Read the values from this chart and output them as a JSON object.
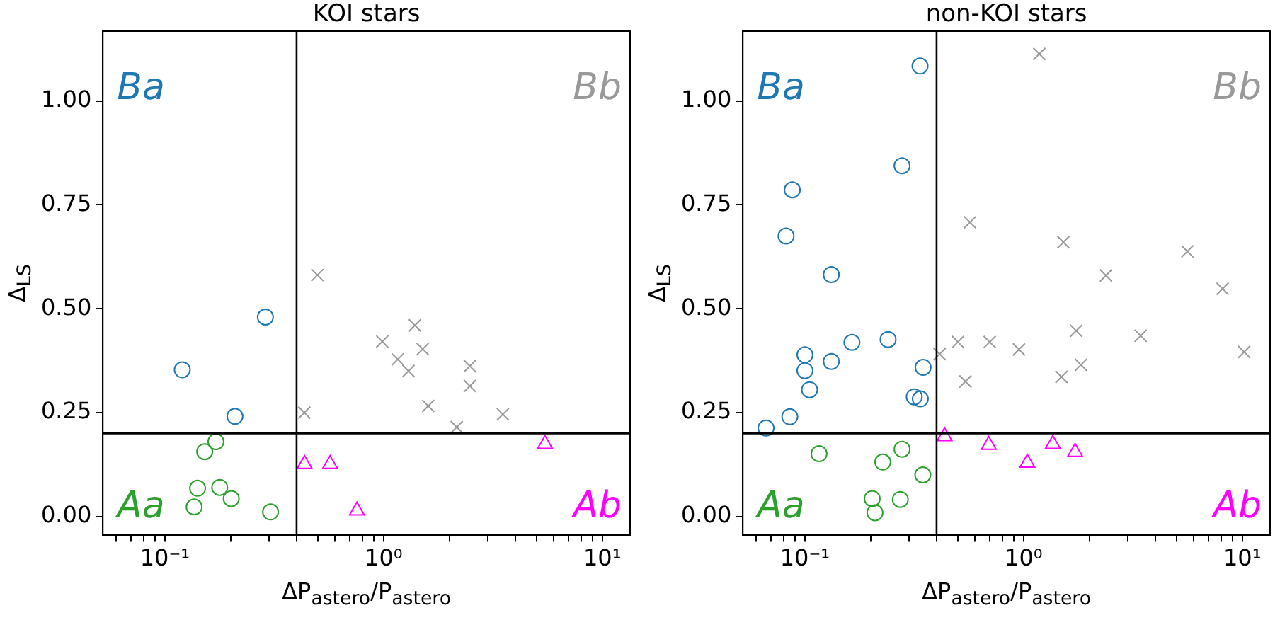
{
  "chart_data": [
    {
      "type": "scatter",
      "title": "KOI stars",
      "xlabel": "ΔP$_{astero}$/P$_{astero}$",
      "ylabel": "Δ$_{LS}$",
      "log": "x",
      "grid": false,
      "xlim": [
        0.052,
        13.4
      ],
      "ylim": [
        -0.044,
        1.168
      ],
      "xticks": [
        {
          "value": 0.06,
          "label": null
        },
        {
          "value": 0.07,
          "label": null
        },
        {
          "value": 0.08,
          "label": null
        },
        {
          "value": 0.09,
          "label": null
        },
        {
          "value": 0.1,
          "label": "10⁻¹"
        },
        {
          "value": 0.2,
          "label": null
        },
        {
          "value": 0.3,
          "label": null
        },
        {
          "value": 0.4,
          "label": null
        },
        {
          "value": 0.5,
          "label": null
        },
        {
          "value": 0.6,
          "label": null
        },
        {
          "value": 0.7,
          "label": null
        },
        {
          "value": 0.8,
          "label": null
        },
        {
          "value": 0.9,
          "label": null
        },
        {
          "value": 1,
          "label": "10⁰"
        },
        {
          "value": 2,
          "label": null
        },
        {
          "value": 3,
          "label": null
        },
        {
          "value": 4,
          "label": null
        },
        {
          "value": 5,
          "label": null
        },
        {
          "value": 6,
          "label": null
        },
        {
          "value": 7,
          "label": null
        },
        {
          "value": 8,
          "label": null
        },
        {
          "value": 9,
          "label": null
        },
        {
          "value": 10,
          "label": "10¹"
        }
      ],
      "yticks": [
        {
          "value": 0,
          "label": "0.00"
        },
        {
          "value": 0.25,
          "label": "0.25"
        },
        {
          "value": 0.5,
          "label": "0.50"
        },
        {
          "value": 0.75,
          "label": "0.75"
        },
        {
          "value": 1,
          "label": "1.00"
        }
      ],
      "ref_lines": [
        {
          "axis": "x",
          "value": 0.4,
          "color": "#000000"
        },
        {
          "axis": "y",
          "value": 0.2,
          "color": "#000000"
        }
      ],
      "annotations": [
        "Aa",
        "Ab",
        "Ba",
        "Bb"
      ],
      "series": [
        {
          "color": "#2ca02c",
          "marker": "circle",
          "x": [
            0.152,
            0.171,
            0.141,
            0.178,
            0.136,
            0.201,
            0.304
          ],
          "values": [
            0.156,
            0.18,
            0.068,
            0.07,
            0.023,
            0.043,
            0.011
          ]
        },
        {
          "color": "#ff00ff",
          "marker": "triangle",
          "x": [
            0.435,
            0.569,
            0.755,
            5.47
          ],
          "values": [
            0.126,
            0.126,
            0.014,
            0.174
          ]
        },
        {
          "color": "#1f77b4",
          "marker": "circle",
          "x": [
            0.12,
            0.288,
            0.209
          ],
          "values": [
            0.353,
            0.48,
            0.241
          ]
        },
        {
          "color": "#999999",
          "marker": "cross",
          "x": [
            0.498,
            0.434,
            0.986,
            1.16,
            1.3,
            1.39,
            1.51,
            1.6,
            2.16,
            2.48,
            2.48,
            3.51
          ],
          "values": [
            0.581,
            0.25,
            0.421,
            0.378,
            0.35,
            0.46,
            0.403,
            0.266,
            0.215,
            0.362,
            0.314,
            0.246
          ]
        }
      ]
    },
    {
      "type": "scatter",
      "title": "non-KOI stars",
      "xlabel": "ΔP$_{astero}$/P$_{astero}$",
      "ylabel": "Δ$_{LS}$",
      "log": "x",
      "grid": false,
      "xlim": [
        0.052,
        13.4
      ],
      "ylim": [
        -0.044,
        1.168
      ],
      "xticks": [
        {
          "value": 0.06,
          "label": null
        },
        {
          "value": 0.07,
          "label": null
        },
        {
          "value": 0.08,
          "label": null
        },
        {
          "value": 0.09,
          "label": null
        },
        {
          "value": 0.1,
          "label": "10⁻¹"
        },
        {
          "value": 0.2,
          "label": null
        },
        {
          "value": 0.3,
          "label": null
        },
        {
          "value": 0.4,
          "label": null
        },
        {
          "value": 0.5,
          "label": null
        },
        {
          "value": 0.6,
          "label": null
        },
        {
          "value": 0.7,
          "label": null
        },
        {
          "value": 0.8,
          "label": null
        },
        {
          "value": 0.9,
          "label": null
        },
        {
          "value": 1,
          "label": "10⁰"
        },
        {
          "value": 2,
          "label": null
        },
        {
          "value": 3,
          "label": null
        },
        {
          "value": 4,
          "label": null
        },
        {
          "value": 5,
          "label": null
        },
        {
          "value": 6,
          "label": null
        },
        {
          "value": 7,
          "label": null
        },
        {
          "value": 8,
          "label": null
        },
        {
          "value": 9,
          "label": null
        },
        {
          "value": 10,
          "label": "10¹"
        }
      ],
      "yticks": [
        {
          "value": 0,
          "label": "0.00"
        },
        {
          "value": 0.25,
          "label": "0.25"
        },
        {
          "value": 0.5,
          "label": "0.50"
        },
        {
          "value": 0.75,
          "label": "0.75"
        },
        {
          "value": 1,
          "label": "1.00"
        }
      ],
      "ref_lines": [
        {
          "axis": "x",
          "value": 0.4,
          "color": "#000000"
        },
        {
          "axis": "y",
          "value": 0.2,
          "color": "#000000"
        }
      ],
      "annotations": [
        "Aa",
        "Ab",
        "Ba",
        "Bb"
      ],
      "series": [
        {
          "color": "#2ca02c",
          "marker": "circle",
          "x": [
            0.116,
            0.227,
            0.278,
            0.346,
            0.203,
            0.209,
            0.273
          ],
          "values": [
            0.151,
            0.131,
            0.162,
            0.1,
            0.043,
            0.009,
            0.041
          ]
        },
        {
          "color": "#ff00ff",
          "marker": "triangle",
          "x": [
            0.435,
            0.693,
            1.04,
            1.36,
            1.72
          ],
          "values": [
            0.193,
            0.172,
            0.129,
            0.174,
            0.155
          ]
        },
        {
          "color": "#1f77b4",
          "marker": "circle",
          "x": [
            0.0664,
            0.0853,
            0.082,
            0.0875,
            0.132,
            0.1,
            0.1,
            0.105,
            0.132,
            0.164,
            0.24,
            0.278,
            0.336,
            0.347,
            0.316,
            0.337
          ],
          "values": [
            0.213,
            0.24,
            0.675,
            0.786,
            0.582,
            0.389,
            0.351,
            0.305,
            0.373,
            0.419,
            0.426,
            0.844,
            1.084,
            0.359,
            0.288,
            0.283
          ]
        },
        {
          "color": "#999999",
          "marker": "cross",
          "x": [
            1.18,
            0.569,
            1.52,
            2.38,
            5.61,
            8.13,
            0.413,
            0.501,
            0.7,
            0.952,
            1.74,
            3.43,
            10.2,
            0.542,
            1.49,
            1.83
          ],
          "values": [
            1.113,
            0.708,
            0.66,
            0.58,
            0.638,
            0.548,
            0.391,
            0.42,
            0.42,
            0.402,
            0.447,
            0.435,
            0.396,
            0.325,
            0.336,
            0.365
          ]
        }
      ]
    }
  ]
}
